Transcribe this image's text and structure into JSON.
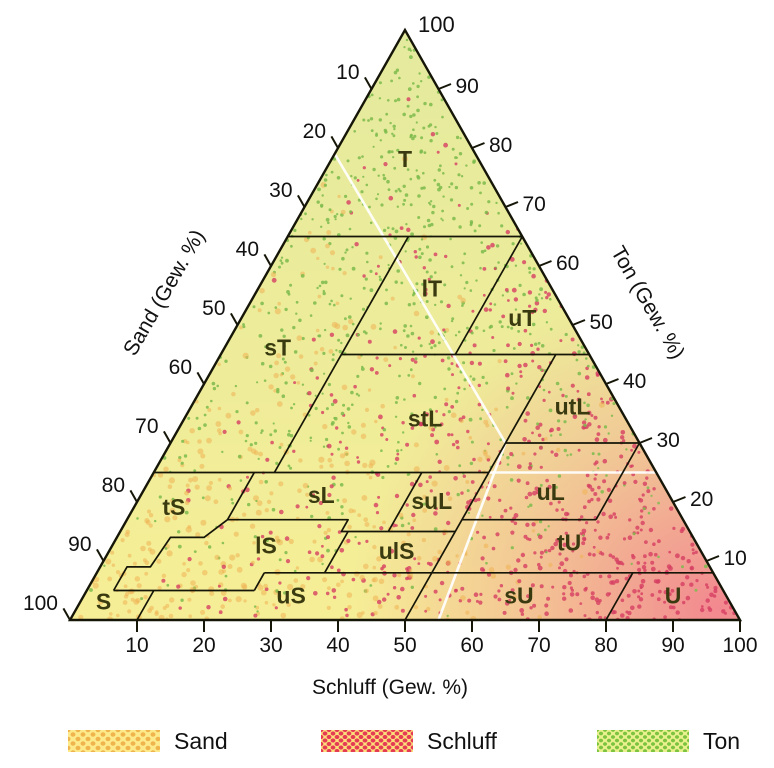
{
  "figure": {
    "kind": "soil-texture-ternary-diagram"
  },
  "axes": {
    "left": {
      "label": "Sand (Gew. %)",
      "ticks": [
        10,
        20,
        30,
        40,
        50,
        60,
        70,
        80,
        90,
        100
      ]
    },
    "right": {
      "label": "Ton (Gew. %)",
      "apex_label": "100",
      "ticks": [
        90,
        80,
        70,
        60,
        50,
        40,
        30,
        20,
        10
      ]
    },
    "bottom": {
      "label": "Schluff (Gew. %)",
      "ticks": [
        10,
        20,
        30,
        40,
        50,
        60,
        70,
        80,
        90,
        100
      ]
    }
  },
  "legend": {
    "items": [
      {
        "label": "Sand",
        "bg": "#fdea8b",
        "dot": "#f0b44d"
      },
      {
        "label": "Schluff",
        "bg": "#fbdf7a",
        "dot": "#e63b55"
      },
      {
        "label": "Ton",
        "bg": "#e9f08d",
        "dot": "#7cc43f"
      }
    ]
  },
  "chart_data": {
    "type": "ternary",
    "title": "",
    "axes": {
      "left": "Sand (Gew. %)",
      "right": "Ton (Gew. %)",
      "bottom": "Schluff (Gew. %)",
      "unit": "Gew. %",
      "range": [
        0,
        100
      ]
    },
    "grid": false,
    "regions": [
      {
        "code": "T",
        "schluff": 11,
        "ton": 78
      },
      {
        "code": "lT",
        "schluff": 26,
        "ton": 56
      },
      {
        "code": "uT",
        "schluff": 42,
        "ton": 51
      },
      {
        "code": "sT",
        "schluff": 8,
        "ton": 46
      },
      {
        "code": "stL",
        "schluff": 36,
        "ton": 34
      },
      {
        "code": "utL",
        "schluff": 57,
        "ton": 36
      },
      {
        "code": "sL",
        "schluff": 27,
        "ton": 21
      },
      {
        "code": "suL",
        "schluff": 44,
        "ton": 20
      },
      {
        "code": "uL",
        "schluff": 61,
        "ton": 21.5
      },
      {
        "code": "tS",
        "schluff": 6,
        "ton": 19
      },
      {
        "code": "lS",
        "schluff": 23,
        "ton": 12.5
      },
      {
        "code": "ulS",
        "schluff": 43,
        "ton": 11.5
      },
      {
        "code": "tU",
        "schluff": 68,
        "ton": 13
      },
      {
        "code": "S",
        "schluff": 3.5,
        "ton": 3
      },
      {
        "code": "uS",
        "schluff": 31,
        "ton": 4
      },
      {
        "code": "sU",
        "schluff": 65,
        "ton": 4
      },
      {
        "code": "U",
        "schluff": 88,
        "ton": 4
      }
    ],
    "boundaries": [
      [
        [
          0,
          65
        ],
        [
          35,
          65
        ]
      ],
      [
        [
          18,
          65
        ],
        [
          18,
          25
        ]
      ],
      [
        [
          35,
          65
        ],
        [
          35,
          45
        ]
      ],
      [
        [
          18,
          45
        ],
        [
          55,
          45
        ]
      ],
      [
        [
          0,
          25
        ],
        [
          50,
          25
        ]
      ],
      [
        [
          50,
          45
        ],
        [
          50,
          0
        ]
      ],
      [
        [
          50,
          30
        ],
        [
          70,
          30
        ]
      ],
      [
        [
          70,
          30
        ],
        [
          70,
          17
        ]
      ],
      [
        [
          50,
          17
        ],
        [
          70,
          17
        ]
      ],
      [
        [
          40,
          25
        ],
        [
          40,
          15
        ]
      ],
      [
        [
          15,
          17
        ],
        [
          33,
          17
        ],
        [
          33,
          15
        ],
        [
          50,
          15
        ]
      ],
      [
        [
          34,
          15
        ],
        [
          34,
          8
        ]
      ],
      [
        [
          25,
          8
        ],
        [
          92,
          8
        ]
      ],
      [
        [
          80,
          8
        ],
        [
          80,
          0
        ]
      ],
      [
        [
          15,
          25
        ],
        [
          15,
          17
        ],
        [
          13,
          14
        ],
        [
          8,
          14
        ],
        [
          7.5,
          9
        ],
        [
          4,
          9
        ],
        [
          4,
          5
        ]
      ],
      [
        [
          4,
          5
        ],
        [
          25,
          5
        ]
      ],
      [
        [
          10,
          5
        ],
        [
          10,
          0
        ]
      ],
      [
        [
          25,
          8
        ],
        [
          25,
          5
        ]
      ]
    ],
    "white_lines": [
      [
        [
          0,
          79
        ],
        [
          50,
          30
        ]
      ],
      [
        [
          50,
          30
        ],
        [
          55,
          0
        ]
      ],
      [
        [
          50,
          25
        ],
        [
          75,
          25
        ]
      ]
    ],
    "colors": {
      "base_top": "#e4ea9e",
      "base_bottom": "#f6ee96",
      "corner_wash": "#f0668e",
      "sand_dot": "#eeb253",
      "schluff_dot": "#d63f62",
      "ton_dot": "#7dbb4c",
      "line": "#161608",
      "white_line": "#ffffff",
      "label": "#3a3a10",
      "tick_text": "#111111"
    }
  }
}
